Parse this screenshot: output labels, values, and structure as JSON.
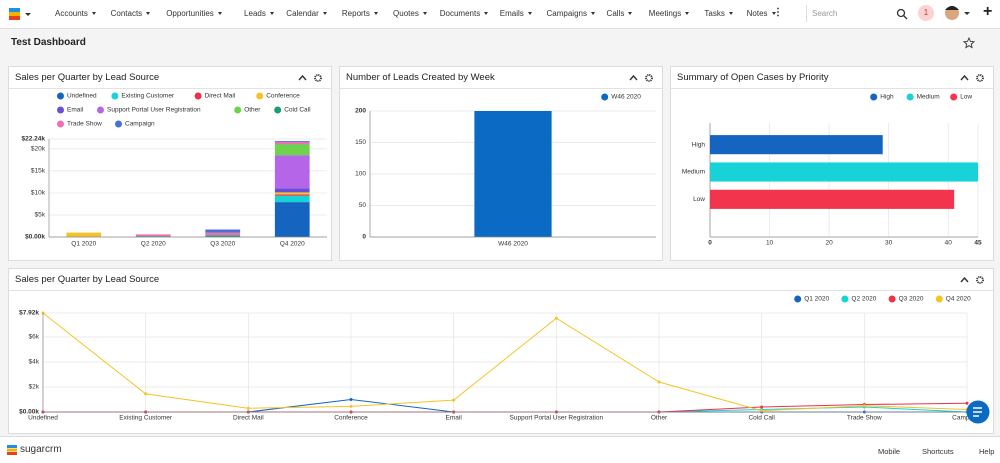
{
  "nav": {
    "items": [
      "Accounts",
      "Contacts",
      "Opportunities",
      "Leads",
      "Calendar",
      "Reports",
      "Quotes",
      "Documents",
      "Emails",
      "Campaigns",
      "Calls",
      "Meetings",
      "Tasks",
      "Notes"
    ],
    "search_placeholder": "Search",
    "notification_count": 1
  },
  "dashboard": {
    "title": "Test Dashboard"
  },
  "chart_data": [
    {
      "type": "bar",
      "stacked": true,
      "title": "Sales per Quarter by Lead Source",
      "categories": [
        "Q1 2020",
        "Q2 2020",
        "Q3 2020",
        "Q4 2020"
      ],
      "series": [
        {
          "name": "Undefined",
          "color": "#1565c0",
          "values": [
            0,
            0,
            0,
            7920
          ]
        },
        {
          "name": "Existing Customer",
          "color": "#17d3d7",
          "values": [
            0,
            0,
            0,
            1450
          ]
        },
        {
          "name": "Direct Mail",
          "color": "#e8334a",
          "values": [
            0,
            0,
            0,
            300
          ]
        },
        {
          "name": "Conference",
          "color": "#f5c324",
          "values": [
            1000,
            0,
            0,
            450
          ]
        },
        {
          "name": "Email",
          "color": "#6a4fd6",
          "values": [
            0,
            0,
            0,
            950
          ]
        },
        {
          "name": "Support Portal User Registration",
          "color": "#b566e8",
          "values": [
            0,
            0,
            0,
            7500
          ]
        },
        {
          "name": "Other",
          "color": "#6dd34a",
          "values": [
            0,
            0,
            0,
            2400
          ]
        },
        {
          "name": "Cold Call",
          "color": "#1a9e6b",
          "values": [
            0,
            200,
            400,
            100
          ]
        },
        {
          "name": "Trade Show",
          "color": "#ef6fb5",
          "values": [
            0,
            400,
            600,
            500
          ]
        },
        {
          "name": "Campaign",
          "color": "#4a6fdb",
          "values": [
            0,
            0,
            700,
            200
          ]
        }
      ],
      "ylim": [
        0,
        22240
      ],
      "yticks": [
        {
          "value": 0,
          "label": "$0.00k"
        },
        {
          "value": 5000,
          "label": "$5k"
        },
        {
          "value": 10000,
          "label": "$10k"
        },
        {
          "value": 15000,
          "label": "$15k"
        },
        {
          "value": 20000,
          "label": "$20k"
        },
        {
          "value": 22240,
          "label": "$22.24k"
        }
      ],
      "grid": true,
      "legend": "top-left"
    },
    {
      "type": "bar",
      "title": "Number of Leads Created by Week",
      "categories": [
        "W46 2020"
      ],
      "series": [
        {
          "name": "W46 2020",
          "color": "#0b6bc4",
          "values": [
            200
          ]
        }
      ],
      "ylim": [
        0,
        200
      ],
      "yticks": [
        0,
        50,
        100,
        150,
        200
      ],
      "grid": true,
      "legend": "top-right"
    },
    {
      "type": "bar",
      "orientation": "horizontal",
      "title": "Summary of Open Cases by Priority",
      "categories": [
        "High",
        "Medium",
        "Low"
      ],
      "values": [
        29,
        45,
        41
      ],
      "colors": [
        "#1565c0",
        "#17d3d7",
        "#f2344d"
      ],
      "xlim": [
        0,
        45
      ],
      "xticks": [
        0,
        10,
        20,
        30,
        40,
        45
      ],
      "grid": true,
      "legend": "top-right"
    },
    {
      "type": "line",
      "title": "Sales per Quarter by Lead Source",
      "categories": [
        "Undefined",
        "Existing Customer",
        "Direct Mail",
        "Conference",
        "Email",
        "Support Portal User Registration",
        "Other",
        "Cold Call",
        "Trade Show",
        "Campaign"
      ],
      "series": [
        {
          "name": "Q1 2020",
          "color": "#1565c0",
          "values": [
            0,
            0,
            0,
            1000,
            0,
            0,
            0,
            0,
            0,
            0
          ]
        },
        {
          "name": "Q2 2020",
          "color": "#17d3d7",
          "values": [
            0,
            0,
            0,
            0,
            0,
            0,
            0,
            200,
            400,
            0
          ]
        },
        {
          "name": "Q3 2020",
          "color": "#e8334a",
          "values": [
            0,
            0,
            0,
            0,
            0,
            0,
            0,
            400,
            600,
            700
          ]
        },
        {
          "name": "Q4 2020",
          "color": "#f5c324",
          "values": [
            7920,
            1450,
            300,
            450,
            950,
            7500,
            2400,
            100,
            500,
            200
          ]
        }
      ],
      "ylim": [
        0,
        7920
      ],
      "yticks": [
        {
          "value": 0,
          "label": "$0.00k"
        },
        {
          "value": 2000,
          "label": "$2k"
        },
        {
          "value": 4000,
          "label": "$4k"
        },
        {
          "value": 6000,
          "label": "$6k"
        },
        {
          "value": 7920,
          "label": "$7.92k"
        }
      ],
      "grid": true,
      "legend": "top-right"
    }
  ],
  "footer": {
    "brand": "sugarcrm",
    "links": [
      "Mobile",
      "Shortcuts",
      "Help"
    ]
  }
}
